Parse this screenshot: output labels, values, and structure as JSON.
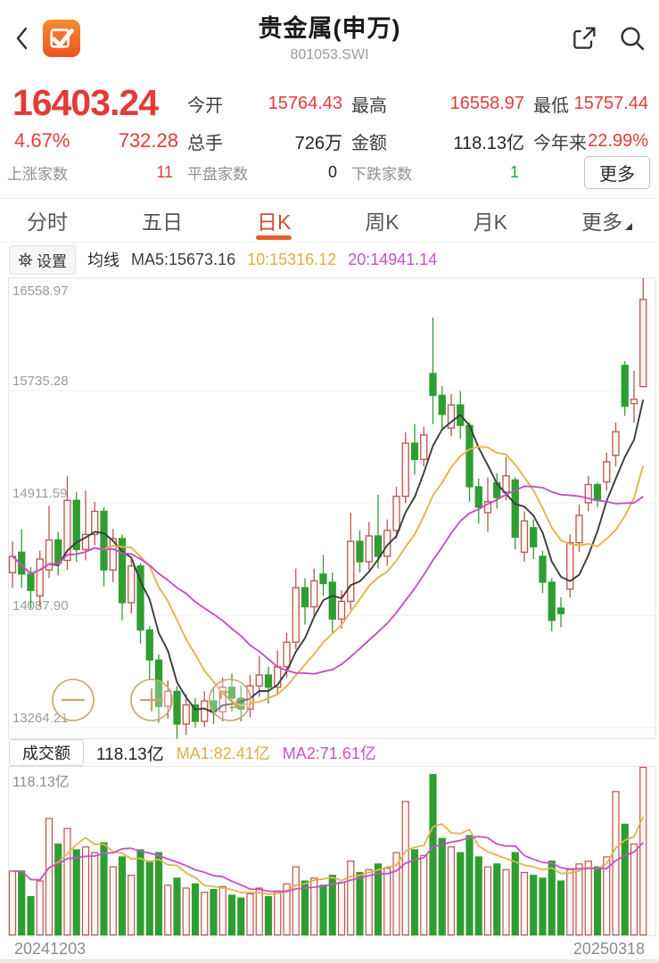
{
  "header": {
    "title": "贵金属(申万)",
    "code": "801053.SWI"
  },
  "quote": {
    "price": "16403.24",
    "change_pct": "4.67%",
    "change_amt": "732.28",
    "rows": [
      [
        {
          "label": "今开",
          "value": "15764.43",
          "cls": "val-red"
        },
        {
          "label": "最高",
          "value": "16558.97",
          "cls": "val-red"
        },
        {
          "label": "最低",
          "value": "15757.44",
          "cls": "val-red"
        }
      ],
      [
        {
          "label": "总手",
          "value": "726万",
          "cls": "val-dark"
        },
        {
          "label": "金额",
          "value": "118.13亿",
          "cls": "val-dark"
        },
        {
          "label": "今年来",
          "value": "22.99%",
          "cls": "val-red"
        }
      ]
    ],
    "stats": [
      {
        "label": "上涨家数",
        "value": "11",
        "cls": "val-red"
      },
      {
        "label": "平盘家数",
        "value": "0",
        "cls": "val-dark"
      },
      {
        "label": "下跌家数",
        "value": "1",
        "cls": "val-green"
      }
    ],
    "more_label": "更多"
  },
  "tabs": [
    {
      "id": "minute",
      "label": "分时",
      "active": false
    },
    {
      "id": "five-day",
      "label": "五日",
      "active": false
    },
    {
      "id": "daily-k",
      "label": "日K",
      "active": true
    },
    {
      "id": "weekly-k",
      "label": "周K",
      "active": false
    },
    {
      "id": "monthly-k",
      "label": "月K",
      "active": false
    },
    {
      "id": "more",
      "label": "更多",
      "active": false,
      "has_triangle": true
    }
  ],
  "kline_legend": {
    "settings_label": "设置",
    "ma_label": "均线",
    "ma5": "MA5:15673.16",
    "ma10": "10:15316.12",
    "ma20": "20:14941.14"
  },
  "volume_legend": {
    "title": "成交额",
    "value": "118.13亿",
    "ma1": "MA1:82.41亿",
    "ma2": "MA2:71.61亿",
    "axis_top": "118.13亿"
  },
  "colors": {
    "up": "#bb544e",
    "up_fill": "#fdf7f5",
    "down": "#2f9e32",
    "ma5": "#3d3d3d",
    "ma10": "#e2b34e",
    "ma20": "#c94fc9",
    "accent_red": "#e23b3a",
    "green": "#2ba135",
    "tab_active": "#cf4f2e",
    "grid": "#ececec",
    "axis_text": "#9b9b9b",
    "circle_btn": "#c9a46b"
  },
  "chart_data": {
    "type": "candlestick",
    "title": "贵金属(申万) 日K",
    "price_max": 16558.97,
    "price_min": 13264.21,
    "y_axis_labels": [
      "16558.97",
      "15735.28",
      "14911.59",
      "14087.90",
      "13264.21"
    ],
    "x_axis_labels": [
      "20241203",
      "20250318"
    ],
    "legend": [
      "MA5",
      "MA10",
      "MA20"
    ],
    "grid": true,
    "candles_ohlc_order": "open,close,low,high",
    "candles": [
      [
        14400,
        14520,
        14290,
        14630
      ],
      [
        14550,
        14390,
        14290,
        14720
      ],
      [
        14390,
        14270,
        14140,
        14440
      ],
      [
        14230,
        14500,
        14150,
        14560
      ],
      [
        14420,
        14640,
        14360,
        14890
      ],
      [
        14640,
        14470,
        14380,
        14700
      ],
      [
        14490,
        14930,
        14420,
        15110
      ],
      [
        14930,
        14570,
        14480,
        14990
      ],
      [
        14570,
        14680,
        14490,
        15000
      ],
      [
        14680,
        14850,
        14600,
        14920
      ],
      [
        14850,
        14420,
        14300,
        14880
      ],
      [
        14420,
        14650,
        14330,
        14720
      ],
      [
        14650,
        14180,
        14050,
        14680
      ],
      [
        14180,
        14450,
        14100,
        14520
      ],
      [
        14450,
        13980,
        13880,
        14470
      ],
      [
        13980,
        13760,
        13620,
        14010
      ],
      [
        13760,
        13420,
        13300,
        13800
      ],
      [
        13420,
        13530,
        13330,
        13610
      ],
      [
        13530,
        13290,
        13180,
        13570
      ],
      [
        13290,
        13430,
        13210,
        13510
      ],
      [
        13430,
        13310,
        13264.21,
        13480
      ],
      [
        13310,
        13460,
        13270,
        13530
      ],
      [
        13460,
        13380,
        13290,
        13560
      ],
      [
        13380,
        13560,
        13310,
        13630
      ],
      [
        13560,
        13480,
        13380,
        13660
      ],
      [
        13480,
        13400,
        13310,
        13570
      ],
      [
        13400,
        13570,
        13340,
        13650
      ],
      [
        13570,
        13650,
        13490,
        13790
      ],
      [
        13650,
        13560,
        13440,
        13710
      ],
      [
        13560,
        13710,
        13500,
        13830
      ],
      [
        13710,
        13890,
        13630,
        13960
      ],
      [
        13890,
        14290,
        13840,
        14430
      ],
      [
        14290,
        14150,
        14020,
        14360
      ],
      [
        14150,
        14340,
        14080,
        14430
      ],
      [
        14390,
        14320,
        14230,
        14530
      ],
      [
        14330,
        14060,
        13960,
        14400
      ],
      [
        14060,
        14190,
        13990,
        14270
      ],
      [
        14190,
        14630,
        14130,
        14840
      ],
      [
        14630,
        14480,
        14400,
        14710
      ],
      [
        14480,
        14670,
        14420,
        14770
      ],
      [
        14670,
        14520,
        14430,
        14970
      ],
      [
        14520,
        14710,
        14450,
        14790
      ],
      [
        14710,
        14960,
        14650,
        15030
      ],
      [
        14960,
        15350,
        14910,
        15430
      ],
      [
        15350,
        15230,
        15120,
        15490
      ],
      [
        15230,
        15410,
        15180,
        15470
      ],
      [
        15860,
        15700,
        15490,
        16270
      ],
      [
        15700,
        15560,
        15440,
        15770
      ],
      [
        15460,
        15630,
        15400,
        15710
      ],
      [
        15630,
        15480,
        15380,
        15730
      ],
      [
        15480,
        15030,
        14920,
        15500
      ],
      [
        15030,
        14880,
        14760,
        15090
      ],
      [
        14840,
        14920,
        14700,
        15100
      ],
      [
        15060,
        14950,
        14870,
        15130
      ],
      [
        14990,
        15110,
        14930,
        15250
      ],
      [
        15080,
        14660,
        14570,
        15100
      ],
      [
        14550,
        14780,
        14480,
        14850
      ],
      [
        14730,
        14590,
        14500,
        14790
      ],
      [
        14520,
        14330,
        14250,
        14560
      ],
      [
        14330,
        14050,
        13970,
        14360
      ],
      [
        14140,
        14100,
        14000,
        14220
      ],
      [
        14280,
        14620,
        14220,
        14680
      ],
      [
        14620,
        14820,
        14550,
        14900
      ],
      [
        14912,
        15046,
        14850,
        15110
      ],
      [
        15046,
        14930,
        14880,
        15060
      ],
      [
        15066,
        15213,
        15000,
        15280
      ],
      [
        15260,
        15434,
        15180,
        15500
      ],
      [
        15920,
        15620,
        15550,
        15950
      ],
      [
        15640,
        15671,
        15500,
        15880
      ],
      [
        15764.43,
        16403.24,
        15757.44,
        16558.97
      ]
    ],
    "volume_unit": "亿",
    "volume_max": 118.13,
    "volumes": [
      45,
      45,
      27,
      38,
      82,
      64,
      75,
      60,
      62,
      58,
      65,
      48,
      55,
      42,
      60,
      52,
      58,
      35,
      40,
      33,
      36,
      30,
      32,
      34,
      28,
      26,
      29,
      33,
      27,
      31,
      36,
      48,
      38,
      40,
      35,
      42,
      37,
      52,
      44,
      46,
      50,
      47,
      58,
      94,
      60,
      56,
      113,
      68,
      62,
      58,
      70,
      55,
      48,
      50,
      46,
      58,
      44,
      42,
      40,
      52,
      38,
      46,
      50,
      52,
      48,
      55,
      101,
      78,
      64,
      118.13
    ],
    "ma_periods": {
      "price": [
        5,
        10,
        20
      ],
      "volume": [
        5,
        10
      ]
    }
  }
}
